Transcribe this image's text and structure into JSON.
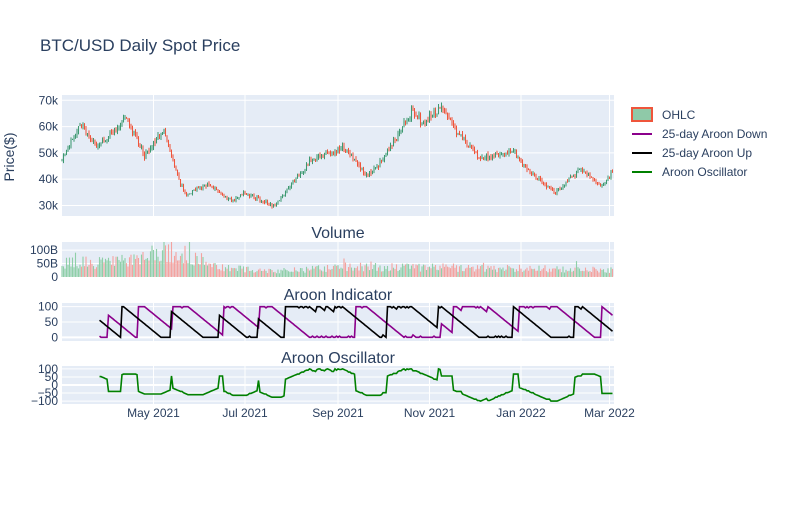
{
  "chart_data": {
    "type": "candlestick",
    "title": "BTC/USD Daily Spot Price",
    "x_range": [
      "2021-03-01",
      "2022-03-04"
    ],
    "x_ticks": [
      {
        "date": "2021-05-01",
        "label": "May 2021"
      },
      {
        "date": "2021-07-01",
        "label": "Jul 2021"
      },
      {
        "date": "2021-09-01",
        "label": "Sep 2021"
      },
      {
        "date": "2021-11-01",
        "label": "Nov 2021"
      },
      {
        "date": "2022-01-01",
        "label": "Jan 2022"
      },
      {
        "date": "2022-03-01",
        "label": "Mar 2022"
      }
    ],
    "legend": {
      "placement": "top-right",
      "items": [
        {
          "label": "OHLC",
          "color": "#ef553b",
          "kind": "candle"
        },
        {
          "label": "25-day Aroon Down",
          "color": "#8b008b",
          "kind": "line"
        },
        {
          "label": "25-day Aroon Up",
          "color": "#000000",
          "kind": "line"
        },
        {
          "label": "Aroon Oscillator",
          "color": "#008000",
          "kind": "line"
        }
      ]
    },
    "colors": {
      "increasing": "#3d9970",
      "decreasing": "#ef553b",
      "grid": "#ffffff",
      "plot_bg": "#e5ecf6",
      "aroon_down": "#8b008b",
      "aroon_up": "#000000",
      "oscillator": "#008000"
    },
    "panels": [
      {
        "id": "price",
        "title": "",
        "ylabel": "Price($)",
        "ylim": [
          26000,
          72000
        ],
        "yticks": [
          {
            "v": 30000,
            "label": "30k"
          },
          {
            "v": 40000,
            "label": "40k"
          },
          {
            "v": 50000,
            "label": "50k"
          },
          {
            "v": 60000,
            "label": "60k"
          },
          {
            "v": 70000,
            "label": "70k"
          }
        ]
      },
      {
        "id": "volume",
        "title": "Volume",
        "ylabel": "",
        "ylim": [
          0,
          130000000000
        ],
        "yticks": [
          {
            "v": 0,
            "label": "0"
          },
          {
            "v": 50000000000,
            "label": "50B"
          },
          {
            "v": 100000000000,
            "label": "100B"
          }
        ]
      },
      {
        "id": "aroon",
        "title": "Aroon Indicator",
        "ylabel": "",
        "ylim": [
          -12,
          112
        ],
        "yticks": [
          {
            "v": 0,
            "label": "0"
          },
          {
            "v": 50,
            "label": "50"
          },
          {
            "v": 100,
            "label": "100"
          }
        ]
      },
      {
        "id": "osc",
        "title": "Aroon Oscillator",
        "ylabel": "",
        "ylim": [
          -118,
          118
        ],
        "yticks": [
          {
            "v": -100,
            "label": "−100"
          },
          {
            "v": -50,
            "label": "−50"
          },
          {
            "v": 0,
            "label": "0"
          },
          {
            "v": 50,
            "label": "50"
          },
          {
            "v": 100,
            "label": "100"
          }
        ]
      }
    ],
    "price_anchors": [
      [
        "2021-03-01",
        47000
      ],
      [
        "2021-03-13",
        61000
      ],
      [
        "2021-03-25",
        52000
      ],
      [
        "2021-04-13",
        63500
      ],
      [
        "2021-04-25",
        49000
      ],
      [
        "2021-05-08",
        58000
      ],
      [
        "2021-05-19",
        38000
      ],
      [
        "2021-05-23",
        34000
      ],
      [
        "2021-06-05",
        38000
      ],
      [
        "2021-06-22",
        32000
      ],
      [
        "2021-07-01",
        34500
      ],
      [
        "2021-07-20",
        29800
      ],
      [
        "2021-08-14",
        47000
      ],
      [
        "2021-09-06",
        52000
      ],
      [
        "2021-09-21",
        41000
      ],
      [
        "2021-10-01",
        47500
      ],
      [
        "2021-10-20",
        66000
      ],
      [
        "2021-10-28",
        61000
      ],
      [
        "2021-11-09",
        67500
      ],
      [
        "2021-11-20",
        58000
      ],
      [
        "2021-12-04",
        48000
      ],
      [
        "2021-12-27",
        50500
      ],
      [
        "2022-01-10",
        41000
      ],
      [
        "2022-01-24",
        35000
      ],
      [
        "2022-02-10",
        44000
      ],
      [
        "2022-02-24",
        37000
      ],
      [
        "2022-03-03",
        43000
      ]
    ],
    "volume_anchors": [
      [
        "2021-03-01",
        50000000000
      ],
      [
        "2021-04-20",
        60000000000
      ],
      [
        "2021-05-19",
        95000000000
      ],
      [
        "2021-06-15",
        35000000000
      ],
      [
        "2021-07-20",
        22000000000
      ],
      [
        "2021-09-07",
        38000000000
      ],
      [
        "2021-11-10",
        35000000000
      ],
      [
        "2022-01-24",
        30000000000
      ],
      [
        "2022-03-03",
        25000000000
      ]
    ]
  }
}
